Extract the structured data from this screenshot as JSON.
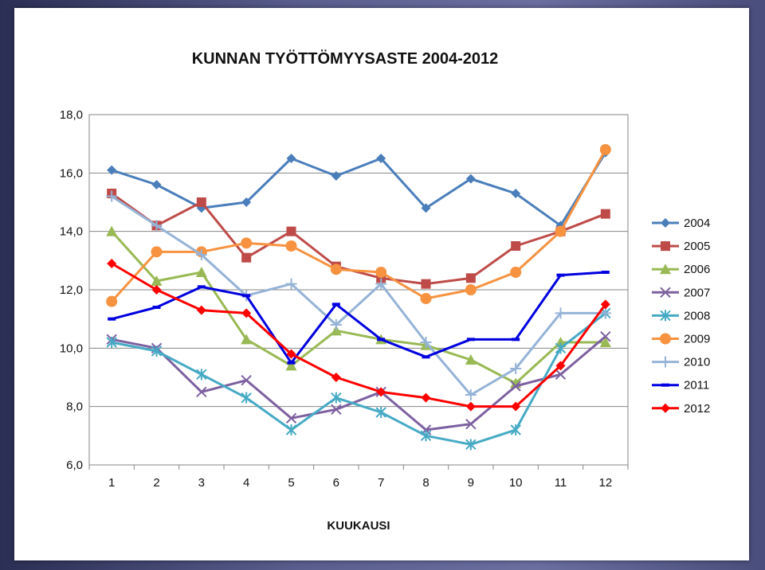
{
  "chart_data": {
    "type": "line",
    "title": "KUNNAN TYÖTTÖMYYSASTE 2004-2012",
    "xlabel": "KUUKAUSI",
    "ylabel": "",
    "categories": [
      "1",
      "2",
      "3",
      "4",
      "5",
      "6",
      "7",
      "8",
      "9",
      "10",
      "11",
      "12"
    ],
    "ylim": [
      6,
      18
    ],
    "yticks": [
      "6,0",
      "8,0",
      "10,0",
      "12,0",
      "14,0",
      "16,0",
      "18,0"
    ],
    "ytick_values": [
      6,
      8,
      10,
      12,
      14,
      16,
      18
    ],
    "grid": "horizontal",
    "legend_position": "right",
    "series": [
      {
        "name": "2004",
        "color": "#4a7ebb",
        "marker": "diamond",
        "values": [
          16.1,
          15.6,
          14.8,
          15.0,
          16.5,
          15.9,
          16.5,
          14.8,
          15.8,
          15.3,
          14.2,
          16.7
        ]
      },
      {
        "name": "2005",
        "color": "#be4b48",
        "marker": "square",
        "values": [
          15.3,
          14.2,
          15.0,
          13.1,
          14.0,
          12.8,
          12.4,
          12.2,
          12.4,
          13.5,
          14.0,
          14.6
        ]
      },
      {
        "name": "2006",
        "color": "#98b954",
        "marker": "triangle",
        "values": [
          14.0,
          12.3,
          12.6,
          10.3,
          9.4,
          10.6,
          10.3,
          10.1,
          9.6,
          8.8,
          10.2,
          10.2
        ]
      },
      {
        "name": "2007",
        "color": "#7d60a0",
        "marker": "x",
        "values": [
          10.3,
          10.0,
          8.5,
          8.9,
          7.6,
          7.9,
          8.5,
          7.2,
          7.4,
          8.7,
          9.1,
          10.4
        ]
      },
      {
        "name": "2008",
        "color": "#46aac5",
        "marker": "star",
        "values": [
          10.2,
          9.9,
          9.1,
          8.3,
          7.2,
          8.3,
          7.8,
          7.0,
          6.7,
          7.2,
          10.0,
          11.2
        ]
      },
      {
        "name": "2009",
        "color": "#f69240",
        "marker": "circle",
        "values": [
          11.6,
          13.3,
          13.3,
          13.6,
          13.5,
          12.7,
          12.6,
          11.7,
          12.0,
          12.6,
          14.0,
          16.8
        ]
      },
      {
        "name": "2010",
        "color": "#95b3d7",
        "marker": "plus",
        "values": [
          15.2,
          14.2,
          13.2,
          11.8,
          12.2,
          10.8,
          12.2,
          10.2,
          8.4,
          9.3,
          11.2,
          11.2
        ]
      },
      {
        "name": "2011",
        "color": "#0000e0",
        "marker": "dash",
        "values": [
          11.0,
          11.4,
          12.1,
          11.8,
          9.5,
          11.5,
          10.3,
          9.7,
          10.3,
          10.3,
          12.5,
          12.6
        ]
      },
      {
        "name": "2012",
        "color": "#ff0000",
        "marker": "diamond",
        "values": [
          12.9,
          12.0,
          11.3,
          11.2,
          9.8,
          9.0,
          8.5,
          8.3,
          8.0,
          8.0,
          9.4,
          11.5
        ]
      }
    ]
  }
}
